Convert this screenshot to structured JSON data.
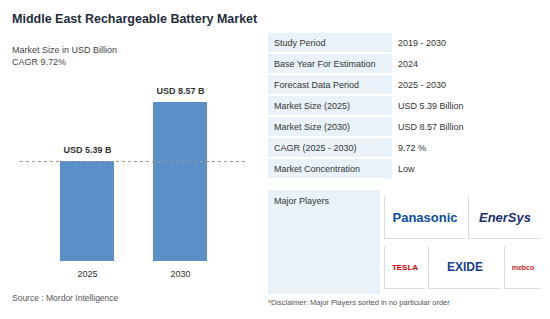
{
  "chart_data": {
    "type": "bar",
    "title": "Middle East Rechargeable Battery Market",
    "subtitle": "Market Size in USD Billion",
    "annotations": [
      "CAGR 9.72%"
    ],
    "categories": [
      "2025",
      "2030"
    ],
    "values": [
      5.39,
      8.57
    ],
    "value_labels": [
      "USD 5.39 B",
      "USD 8.57 B"
    ],
    "color": "#5b8fc7",
    "data_labels": true,
    "tick_labels": "x",
    "grid": false
  },
  "source": "Source :  Mordor Intelligence",
  "info_table": {
    "rows": [
      [
        "Study Period",
        "2019 - 2030"
      ],
      [
        "Base Year For Estimation",
        "2024"
      ],
      [
        "Forecast Data Period",
        "2025 - 2030"
      ],
      [
        "Market Size (2025)",
        "USD 5.39 Billion"
      ],
      [
        "Market Size (2030)",
        "USD 8.57 Billion"
      ],
      [
        "CAGR (2025 - 2030)",
        "9.72 %"
      ],
      [
        "Market Concentration",
        "Low"
      ]
    ]
  },
  "major_players": {
    "label": "Major Players",
    "logos": [
      "Panasonic",
      "EnerSys",
      "TESLA",
      "EXIDE",
      "mebco"
    ]
  },
  "disclaimer": "*Disclaimer: Major Players sorted in no particular order"
}
